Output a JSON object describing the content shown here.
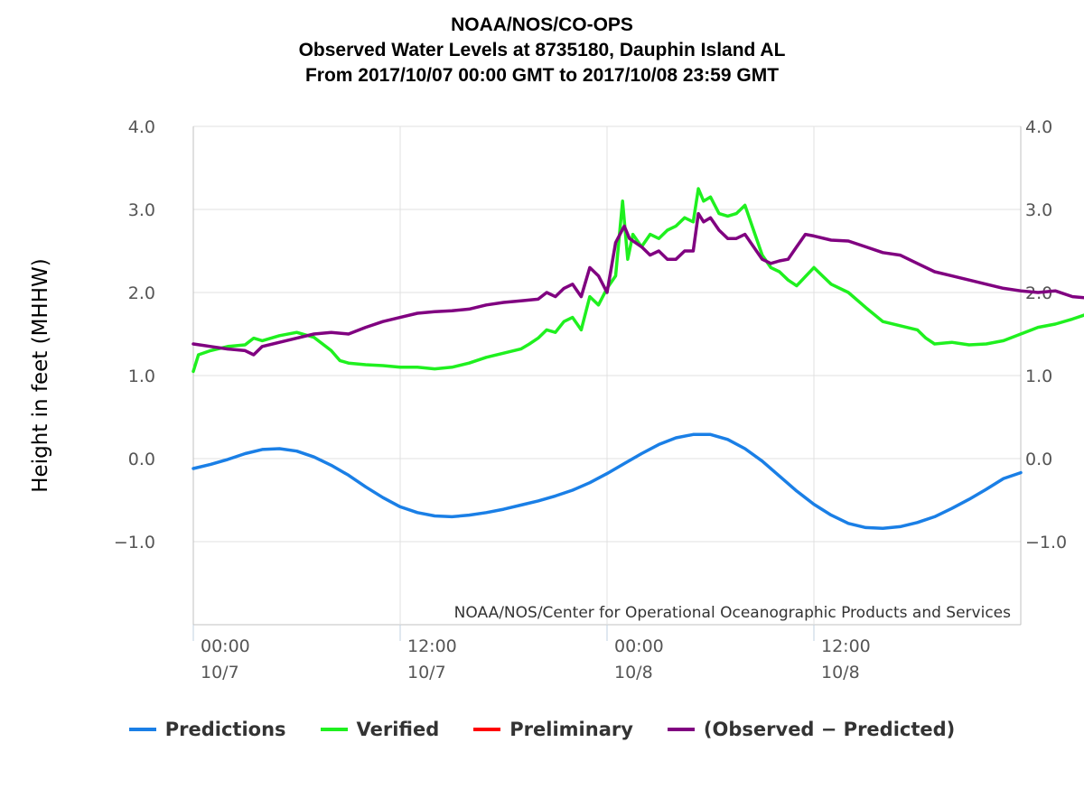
{
  "title_lines": [
    "NOAA/NOS/CO-OPS",
    "Observed Water Levels at 8735180, Dauphin Island AL",
    "From 2017/10/07 00:00 GMT to 2017/10/08 23:59 GMT"
  ],
  "credit": "NOAA/NOS/Center for Operational Oceanographic Products and Services",
  "chart_data": {
    "type": "line",
    "title": "NOAA/NOS/CO-OPS",
    "ylabel": "Height in feet (MHHW)",
    "xlabel": "",
    "ylim": [
      -2.0,
      4.0
    ],
    "xlim_hours": [
      0,
      48
    ],
    "grid": true,
    "legend_position": "bottom",
    "y_ticks": [
      {
        "value": 4.0,
        "label": "4.0"
      },
      {
        "value": 3.0,
        "label": "3.0"
      },
      {
        "value": 2.0,
        "label": "2.0"
      },
      {
        "value": 1.0,
        "label": "1.0"
      },
      {
        "value": 0.0,
        "label": "0.0"
      },
      {
        "value": -1.0,
        "label": "−1.0"
      }
    ],
    "x_ticks": [
      {
        "hour": 0,
        "time": "00:00",
        "date": "10/7"
      },
      {
        "hour": 12,
        "time": "12:00",
        "date": "10/7"
      },
      {
        "hour": 24,
        "time": "00:00",
        "date": "10/8"
      },
      {
        "hour": 36,
        "time": "12:00",
        "date": "10/8"
      }
    ],
    "series": [
      {
        "name": "Predictions",
        "color": "#1a7fe6",
        "points": [
          [
            0,
            -0.12
          ],
          [
            1,
            -0.07
          ],
          [
            2,
            -0.01
          ],
          [
            3,
            0.06
          ],
          [
            4,
            0.11
          ],
          [
            5,
            0.12
          ],
          [
            6,
            0.09
          ],
          [
            7,
            0.02
          ],
          [
            8,
            -0.08
          ],
          [
            9,
            -0.2
          ],
          [
            10,
            -0.34
          ],
          [
            11,
            -0.47
          ],
          [
            12,
            -0.58
          ],
          [
            13,
            -0.65
          ],
          [
            14,
            -0.69
          ],
          [
            15,
            -0.7
          ],
          [
            16,
            -0.68
          ],
          [
            17,
            -0.65
          ],
          [
            18,
            -0.61
          ],
          [
            19,
            -0.56
          ],
          [
            20,
            -0.51
          ],
          [
            21,
            -0.45
          ],
          [
            22,
            -0.38
          ],
          [
            23,
            -0.29
          ],
          [
            24,
            -0.18
          ],
          [
            25,
            -0.06
          ],
          [
            26,
            0.06
          ],
          [
            27,
            0.17
          ],
          [
            28,
            0.25
          ],
          [
            29,
            0.29
          ],
          [
            30,
            0.29
          ],
          [
            31,
            0.23
          ],
          [
            32,
            0.12
          ],
          [
            33,
            -0.03
          ],
          [
            34,
            -0.21
          ],
          [
            35,
            -0.39
          ],
          [
            36,
            -0.55
          ],
          [
            37,
            -0.68
          ],
          [
            38,
            -0.78
          ],
          [
            39,
            -0.83
          ],
          [
            40,
            -0.84
          ],
          [
            41,
            -0.82
          ],
          [
            42,
            -0.77
          ],
          [
            43,
            -0.7
          ],
          [
            44,
            -0.6
          ],
          [
            45,
            -0.49
          ],
          [
            46,
            -0.37
          ],
          [
            47,
            -0.24
          ],
          [
            48,
            -0.17
          ]
        ]
      },
      {
        "name": "Verified",
        "color": "#1ff01f",
        "points": [
          [
            0,
            1.05
          ],
          [
            0.3,
            1.25
          ],
          [
            1,
            1.3
          ],
          [
            2,
            1.35
          ],
          [
            3,
            1.37
          ],
          [
            3.5,
            1.45
          ],
          [
            4,
            1.42
          ],
          [
            5,
            1.48
          ],
          [
            6,
            1.52
          ],
          [
            7,
            1.46
          ],
          [
            8,
            1.3
          ],
          [
            8.5,
            1.18
          ],
          [
            9,
            1.15
          ],
          [
            10,
            1.13
          ],
          [
            11,
            1.12
          ],
          [
            12,
            1.1
          ],
          [
            13,
            1.1
          ],
          [
            14,
            1.08
          ],
          [
            15,
            1.1
          ],
          [
            16,
            1.15
          ],
          [
            17,
            1.22
          ],
          [
            18,
            1.27
          ],
          [
            19,
            1.32
          ],
          [
            19.5,
            1.38
          ],
          [
            20,
            1.45
          ],
          [
            20.5,
            1.55
          ],
          [
            21,
            1.52
          ],
          [
            21.5,
            1.65
          ],
          [
            22,
            1.7
          ],
          [
            22.5,
            1.55
          ],
          [
            23,
            1.95
          ],
          [
            23.5,
            1.85
          ],
          [
            24,
            2.05
          ],
          [
            24.5,
            2.2
          ],
          [
            24.9,
            3.1
          ],
          [
            25.2,
            2.4
          ],
          [
            25.5,
            2.7
          ],
          [
            26,
            2.55
          ],
          [
            26.5,
            2.7
          ],
          [
            27,
            2.65
          ],
          [
            27.5,
            2.75
          ],
          [
            28,
            2.8
          ],
          [
            28.5,
            2.9
          ],
          [
            29,
            2.85
          ],
          [
            29.3,
            3.25
          ],
          [
            29.6,
            3.1
          ],
          [
            30,
            3.15
          ],
          [
            30.5,
            2.95
          ],
          [
            31,
            2.92
          ],
          [
            31.5,
            2.95
          ],
          [
            32,
            3.05
          ],
          [
            32.5,
            2.75
          ],
          [
            33,
            2.45
          ],
          [
            33.5,
            2.3
          ],
          [
            34,
            2.25
          ],
          [
            34.5,
            2.15
          ],
          [
            35,
            2.08
          ],
          [
            36,
            2.3
          ],
          [
            36.5,
            2.2
          ],
          [
            37,
            2.1
          ],
          [
            38,
            2.0
          ],
          [
            39,
            1.82
          ],
          [
            40,
            1.65
          ],
          [
            41,
            1.6
          ],
          [
            42,
            1.55
          ],
          [
            42.5,
            1.45
          ],
          [
            43,
            1.38
          ],
          [
            44,
            1.4
          ],
          [
            45,
            1.37
          ],
          [
            46,
            1.38
          ],
          [
            47,
            1.42
          ],
          [
            48,
            1.5
          ],
          [
            49,
            1.58
          ],
          [
            50,
            1.62
          ],
          [
            51,
            1.68
          ],
          [
            52,
            1.75
          ]
        ]
      },
      {
        "name": "Preliminary",
        "color": "#ff0000",
        "points": []
      },
      {
        "name": "(Observed − Predicted)",
        "color": "#800080",
        "points": [
          [
            0,
            1.38
          ],
          [
            1,
            1.35
          ],
          [
            2,
            1.32
          ],
          [
            3,
            1.3
          ],
          [
            3.5,
            1.25
          ],
          [
            4,
            1.35
          ],
          [
            5,
            1.4
          ],
          [
            6,
            1.45
          ],
          [
            7,
            1.5
          ],
          [
            8,
            1.52
          ],
          [
            9,
            1.5
          ],
          [
            10,
            1.58
          ],
          [
            11,
            1.65
          ],
          [
            12,
            1.7
          ],
          [
            13,
            1.75
          ],
          [
            14,
            1.77
          ],
          [
            15,
            1.78
          ],
          [
            16,
            1.8
          ],
          [
            17,
            1.85
          ],
          [
            18,
            1.88
          ],
          [
            19,
            1.9
          ],
          [
            20,
            1.92
          ],
          [
            20.5,
            2.0
          ],
          [
            21,
            1.95
          ],
          [
            21.5,
            2.05
          ],
          [
            22,
            2.1
          ],
          [
            22.5,
            1.95
          ],
          [
            23,
            2.3
          ],
          [
            23.5,
            2.2
          ],
          [
            24,
            2.0
          ],
          [
            24.5,
            2.6
          ],
          [
            25,
            2.8
          ],
          [
            25.3,
            2.65
          ],
          [
            26,
            2.55
          ],
          [
            26.5,
            2.45
          ],
          [
            27,
            2.5
          ],
          [
            27.5,
            2.4
          ],
          [
            28,
            2.4
          ],
          [
            28.5,
            2.5
          ],
          [
            29,
            2.5
          ],
          [
            29.3,
            2.95
          ],
          [
            29.6,
            2.85
          ],
          [
            30,
            2.9
          ],
          [
            30.5,
            2.75
          ],
          [
            31,
            2.65
          ],
          [
            31.5,
            2.65
          ],
          [
            32,
            2.7
          ],
          [
            32.5,
            2.55
          ],
          [
            33,
            2.4
          ],
          [
            33.5,
            2.35
          ],
          [
            34,
            2.38
          ],
          [
            34.5,
            2.4
          ],
          [
            35,
            2.55
          ],
          [
            35.5,
            2.7
          ],
          [
            36,
            2.68
          ],
          [
            37,
            2.63
          ],
          [
            38,
            2.62
          ],
          [
            39,
            2.55
          ],
          [
            40,
            2.48
          ],
          [
            41,
            2.45
          ],
          [
            42,
            2.35
          ],
          [
            43,
            2.25
          ],
          [
            44,
            2.2
          ],
          [
            45,
            2.15
          ],
          [
            46,
            2.1
          ],
          [
            47,
            2.05
          ],
          [
            48,
            2.02
          ],
          [
            49,
            2.0
          ],
          [
            50,
            2.02
          ],
          [
            51,
            1.95
          ],
          [
            52,
            1.93
          ]
        ]
      }
    ]
  }
}
